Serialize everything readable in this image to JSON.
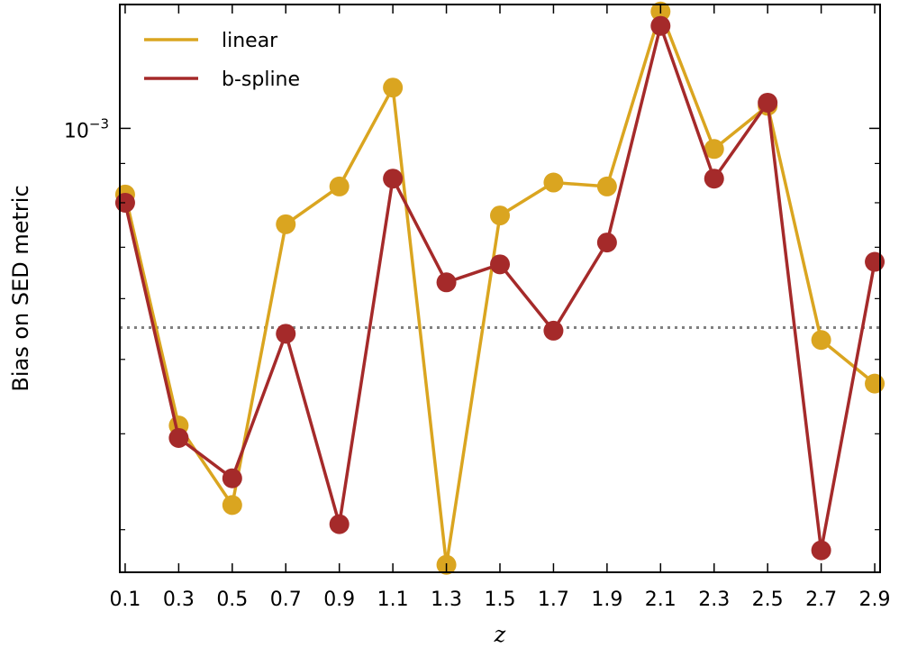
{
  "chart_data": {
    "type": "line",
    "xlabel": "z",
    "ylabel": "Bias on SED metric",
    "yscale": "log",
    "x": [
      0.1,
      0.3,
      0.5,
      0.7,
      0.9,
      1.1,
      1.3,
      1.5,
      1.7,
      1.9,
      2.1,
      2.3,
      2.5,
      2.7,
      2.9
    ],
    "xticks": [
      "0.1",
      "0.3",
      "0.5",
      "0.7",
      "0.9",
      "1.1",
      "1.3",
      "1.5",
      "1.7",
      "1.9",
      "2.1",
      "2.3",
      "2.5",
      "2.7",
      "2.9"
    ],
    "xlim": [
      0.08,
      2.92
    ],
    "ylim": [
      0.000264,
      0.00145
    ],
    "ytick_labels": [
      {
        "value": 0.001,
        "base": "10",
        "exponent": "−3"
      }
    ],
    "reference_line": {
      "value": 0.00055,
      "style": "dotted",
      "color": "#808080"
    },
    "legend_position": "top-left",
    "grid": false,
    "series": [
      {
        "name": "linear",
        "color": "#DAA520",
        "values": [
          0.00082,
          0.00041,
          0.000323,
          0.00075,
          0.00084,
          0.00113,
          0.00027,
          0.00077,
          0.00085,
          0.00084,
          0.00142,
          0.00094,
          0.00107,
          0.00053,
          0.000465
        ]
      },
      {
        "name": "b-spline",
        "color": "#A52A2A",
        "values": [
          0.0008,
          0.000395,
          0.00035,
          0.00054,
          0.000305,
          0.00086,
          0.00063,
          0.000665,
          0.000545,
          0.00071,
          0.00136,
          0.00086,
          0.00108,
          0.000282,
          0.00067
        ]
      }
    ]
  }
}
